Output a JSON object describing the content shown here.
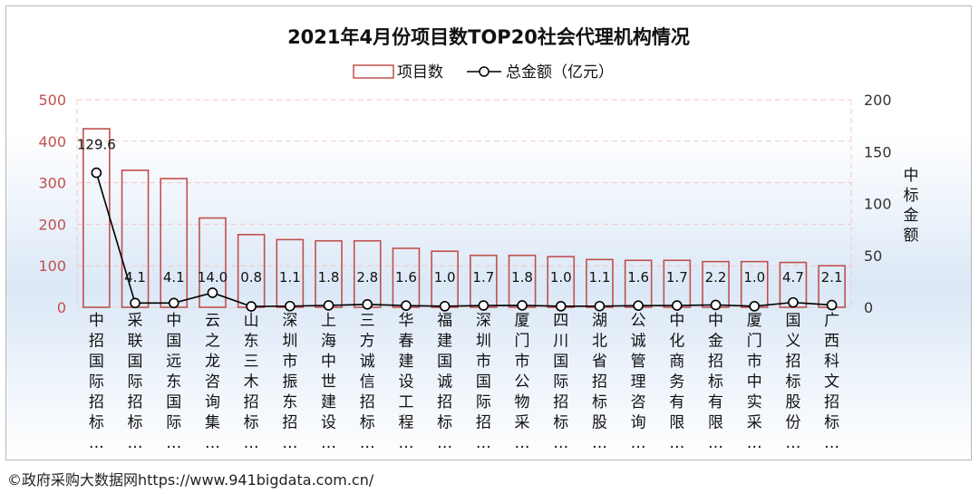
{
  "chart_data": {
    "type": "bar+line",
    "title": "2021年4月份项目数TOP20社会代理机构情况",
    "legend": [
      "项目数",
      "总金额（亿元）"
    ],
    "legend_position": "top",
    "categories": [
      "中招国际招标…",
      "采联国际招标…",
      "中国远东国际…",
      "云之龙咨询集…",
      "山东三木招标…",
      "深圳市振东招…",
      "上海中世建设…",
      "三方诚信招标…",
      "华春建设工程…",
      "福建国诚招标…",
      "深圳市国际招…",
      "厦门市公物采…",
      "四川国际招标…",
      "湖北省招标股…",
      "公诚管理咨询…",
      "中化商务有限…",
      "中金招标有限…",
      "厦门市中实采…",
      "国义招标股份…",
      "广西科文招标…"
    ],
    "series": [
      {
        "name": "项目数",
        "type": "bar",
        "axis": "left",
        "values": [
          430,
          330,
          310,
          215,
          175,
          163,
          160,
          160,
          142,
          135,
          125,
          125,
          122,
          115,
          113,
          113,
          110,
          110,
          108,
          100
        ]
      },
      {
        "name": "总金额（亿元）",
        "type": "line",
        "axis": "right",
        "values": [
          129.6,
          4.1,
          4.1,
          14.0,
          0.8,
          1.1,
          1.8,
          2.8,
          1.6,
          1.0,
          1.7,
          1.8,
          1.0,
          1.1,
          1.6,
          1.7,
          2.2,
          1.0,
          4.7,
          2.1
        ],
        "labels": [
          "129.6",
          "4.1",
          "4.1",
          "14.0",
          "0.8",
          "1.1",
          "1.8",
          "2.8",
          "1.6",
          "1.0",
          "1.7",
          "1.8",
          "1.0",
          "1.1",
          "1.6",
          "1.7",
          "2.2",
          "1.0",
          "4.7",
          "2.1"
        ]
      }
    ],
    "y_left": {
      "ylim": [
        0,
        500
      ],
      "ticks": [
        "0",
        "100",
        "200",
        "300",
        "400",
        "500"
      ]
    },
    "y_right": {
      "ylim": [
        0,
        200
      ],
      "ticks": [
        "0",
        "50",
        "100",
        "150",
        "200"
      ],
      "label": "中标金额"
    },
    "colors": {
      "bar_edge": "#c0504d",
      "line": "#000000",
      "left_axis": "#c0504d",
      "grid": "#f2c7c7"
    }
  },
  "footer": {
    "credit": "©政府采购大数据网https://www.941bigdata.com.cn/"
  }
}
